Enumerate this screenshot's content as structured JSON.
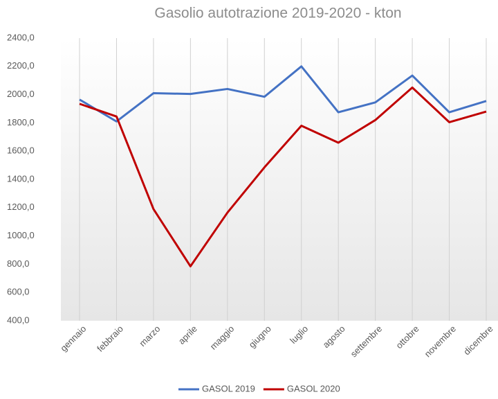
{
  "chart_data": {
    "type": "line",
    "title": "Gasolio  autotrazione 2019-2020 - kton",
    "categories": [
      "gennaio",
      "febbraio",
      "marzo",
      "aprile",
      "maggio",
      "giugno",
      "luglio",
      "agosto",
      "settembre",
      "ottobre",
      "novembre",
      "dicembre"
    ],
    "series": [
      {
        "name": "GASOL 2019",
        "color": "#4472c4",
        "values": [
          1965,
          1810,
          2010,
          2005,
          2040,
          1985,
          2200,
          1875,
          1945,
          2135,
          1875,
          1955
        ]
      },
      {
        "name": "GASOL 2020",
        "color": "#c00000",
        "values": [
          1935,
          1845,
          1190,
          785,
          1165,
          1485,
          1780,
          1660,
          1820,
          2050,
          1805,
          1880
        ]
      }
    ],
    "ylim": [
      400,
      2400
    ],
    "yticks": [
      {
        "value": 400,
        "label": "400,0"
      },
      {
        "value": 600,
        "label": "600,0"
      },
      {
        "value": 800,
        "label": "800,0"
      },
      {
        "value": 1000,
        "label": "1000,0"
      },
      {
        "value": 1200,
        "label": "1200,0"
      },
      {
        "value": 1400,
        "label": "1400,0"
      },
      {
        "value": 1600,
        "label": "1600,0"
      },
      {
        "value": 1800,
        "label": "1800,0"
      },
      {
        "value": 2000,
        "label": "2000,0"
      },
      {
        "value": 2200,
        "label": "2200,0"
      },
      {
        "value": 2400,
        "label": "2400,0"
      }
    ],
    "grid": "vertical",
    "legend": "bottom"
  }
}
